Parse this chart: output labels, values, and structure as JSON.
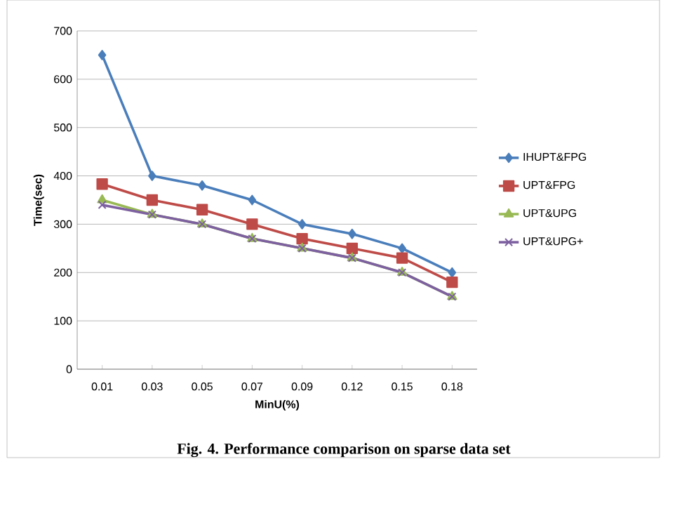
{
  "chart_data": {
    "type": "line",
    "xlabel": "MinU(%)",
    "ylabel": "Time(sec)",
    "categories": [
      "0.01",
      "0.03",
      "0.05",
      "0.07",
      "0.09",
      "0.12",
      "0.15",
      "0.18"
    ],
    "ylim": [
      0,
      700
    ],
    "yticks": [
      0,
      100,
      200,
      300,
      400,
      500,
      600,
      700
    ],
    "grid": "y",
    "legend": "right",
    "annotations": [
      "Fig. 4. Performance comparison on sparse data set"
    ],
    "series": [
      {
        "name": "IHUPT&FPG",
        "color": "#4a7ebb",
        "marker": "diamond",
        "values": [
          650,
          400,
          380,
          350,
          300,
          280,
          250,
          200
        ]
      },
      {
        "name": "UPT&FPG",
        "color": "#be4b48",
        "marker": "square",
        "values": [
          383,
          350,
          330,
          300,
          270,
          250,
          230,
          180
        ]
      },
      {
        "name": "UPT&UPG",
        "color": "#98b954",
        "marker": "triangle",
        "values": [
          350,
          320,
          300,
          270,
          250,
          230,
          200,
          150
        ]
      },
      {
        "name": "UPT&UPG+",
        "color": "#7d60a0",
        "marker": "cross",
        "values": [
          340,
          320,
          300,
          270,
          250,
          230,
          200,
          150
        ]
      }
    ]
  }
}
